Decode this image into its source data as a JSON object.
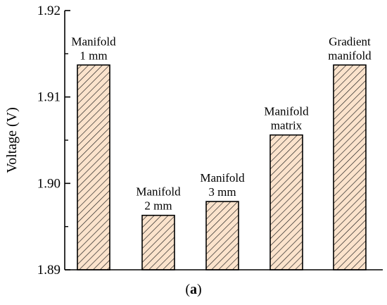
{
  "chart_data": {
    "type": "bar",
    "categories": [
      [
        "Manifold",
        "1 mm"
      ],
      [
        "Manifold",
        "2 mm"
      ],
      [
        "Manifold",
        "3 mm"
      ],
      [
        "Manifold",
        "matrix"
      ],
      [
        "Gradient",
        "manifold"
      ]
    ],
    "values": [
      1.9137,
      1.8963,
      1.8979,
      1.9056,
      1.9137
    ],
    "ylabel": "Voltage (V)",
    "xlabel": "",
    "ylim": [
      1.89,
      1.92
    ],
    "yticks": [
      "1.89",
      "1.90",
      "1.91",
      "1.92"
    ],
    "bar_fill": "#fbe3cc",
    "hatch_color": "#1a1a1a",
    "legend": "none",
    "grid": false
  },
  "caption": {
    "open": "(",
    "letter": "a",
    "close": ")"
  }
}
